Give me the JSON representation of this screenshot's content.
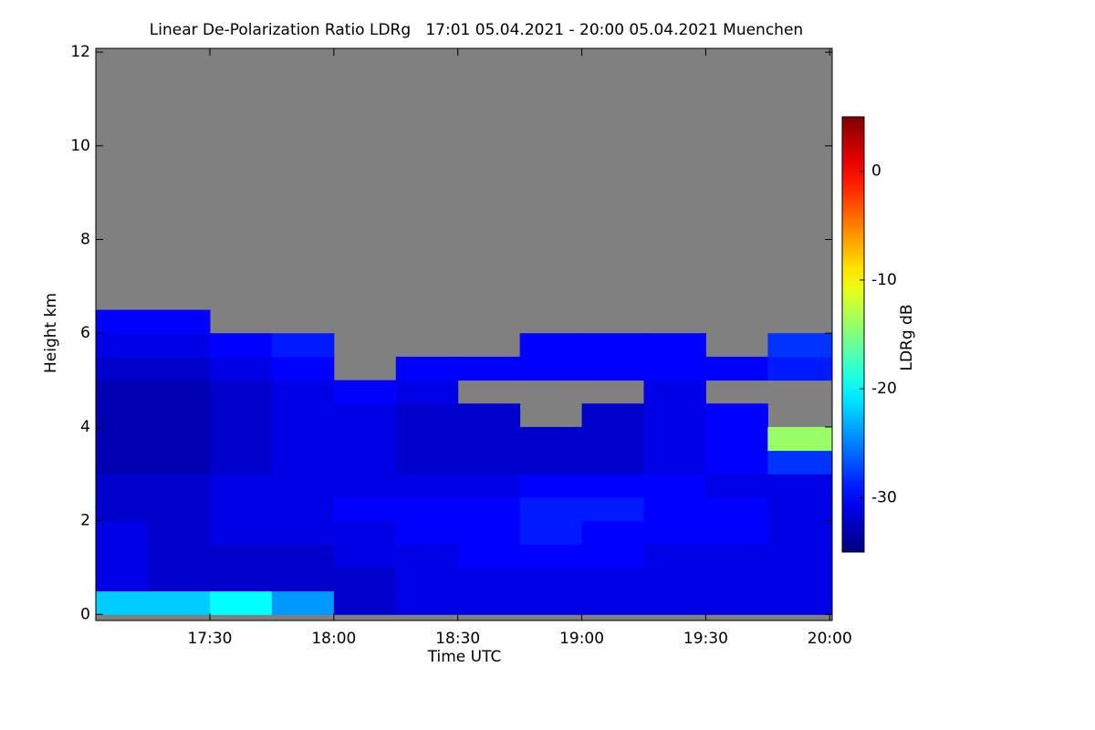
{
  "chart_data": {
    "type": "heatmap",
    "title": "Linear De-Polarization Ratio LDRg   17:01 05.04.2021 - 20:00 05.04.2021 Muenchen",
    "x_label": "Time UTC",
    "y_label": "Height km",
    "colorbar_label": "LDRg dB",
    "xlim": [
      17.04,
      20.01
    ],
    "xticks": [
      {
        "value": 17.5,
        "label": "17:30"
      },
      {
        "value": 18.0,
        "label": "18:00"
      },
      {
        "value": 18.5,
        "label": "18:30"
      },
      {
        "value": 19.0,
        "label": "19:00"
      },
      {
        "value": 19.5,
        "label": "19:30"
      },
      {
        "value": 20.0,
        "label": "20:00"
      }
    ],
    "ylim": [
      -0.13,
      12.08
    ],
    "yticks": [
      0,
      2,
      4,
      6,
      8,
      10,
      12
    ],
    "zlim": [
      -35,
      5
    ],
    "zticks": [
      -30,
      -20,
      -10,
      0
    ],
    "colormap": "jet",
    "nodata_color": "#808080",
    "xbins": [
      17.04,
      17.25,
      17.5,
      17.75,
      18.0,
      18.25,
      18.5,
      18.75,
      19.0,
      19.25,
      19.5,
      19.75,
      20.01
    ],
    "ybins": [
      0,
      0.5,
      1,
      1.5,
      2,
      2.5,
      3,
      3.5,
      4,
      4.5,
      5,
      5.5,
      6,
      6.5
    ],
    "z": [
      [
        -22,
        -22,
        -20,
        -24,
        -32,
        -31,
        -31,
        -31,
        -31,
        -31,
        -31,
        -31
      ],
      [
        -31,
        -32,
        -32,
        -32,
        -32,
        -31,
        -31,
        -31,
        -31,
        -31,
        -31,
        -31
      ],
      [
        -31,
        -32,
        -32,
        -32,
        -31,
        -31,
        -30,
        -30,
        -30,
        -31,
        -31,
        -31
      ],
      [
        -31,
        -32,
        -31,
        -31,
        -31,
        -30,
        -30,
        -29,
        -30,
        -30,
        -30,
        -31
      ],
      [
        -32,
        -32,
        -31,
        -31,
        -30,
        -30,
        -30,
        -29,
        -29,
        -30,
        -30,
        -31
      ],
      [
        -32,
        -32,
        -31,
        -31,
        -31,
        -31,
        -31,
        -30,
        -30,
        -30,
        -31,
        -31
      ],
      [
        -33,
        -33,
        -32,
        -31,
        -31,
        -32,
        -32,
        -32,
        -32,
        -31,
        -30,
        -28
      ],
      [
        -33,
        -33,
        -32,
        -31,
        -31,
        -32,
        -32,
        -32,
        -32,
        -31,
        -30,
        -14
      ],
      [
        -33,
        -33,
        -32,
        -31,
        -31,
        -32,
        -32,
        null,
        -32,
        -31,
        -30,
        null
      ],
      [
        -33,
        -33,
        -32,
        -31,
        -30,
        -31,
        null,
        null,
        null,
        -31,
        null,
        null
      ],
      [
        -32,
        -32,
        -31,
        -30,
        null,
        -30,
        -30,
        -30,
        -30,
        -30,
        -30,
        -29
      ],
      [
        -31,
        -31,
        -30,
        -29,
        null,
        null,
        null,
        -30,
        -30,
        -30,
        null,
        -28
      ],
      [
        -30,
        -30,
        null,
        null,
        null,
        null,
        null,
        null,
        null,
        null,
        null,
        null
      ]
    ]
  }
}
